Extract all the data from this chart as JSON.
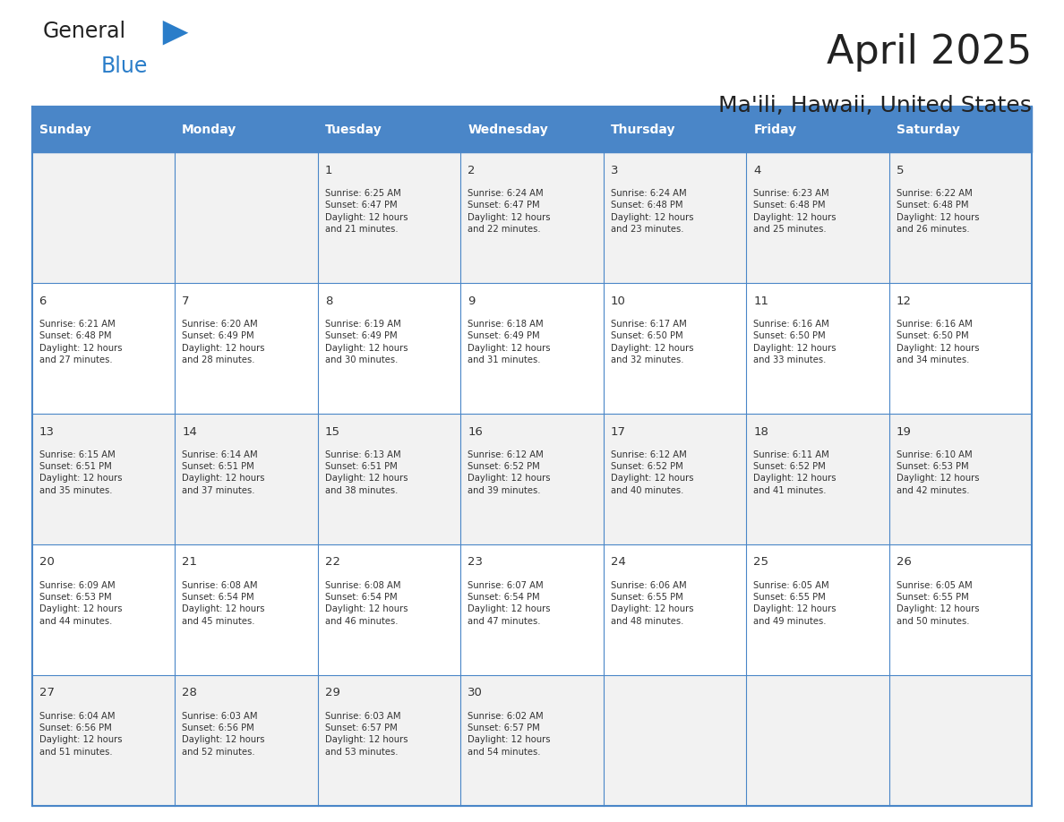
{
  "title": "April 2025",
  "subtitle": "Ma'ili, Hawaii, United States",
  "days_of_week": [
    "Sunday",
    "Monday",
    "Tuesday",
    "Wednesday",
    "Thursday",
    "Friday",
    "Saturday"
  ],
  "header_bg": "#4a86c8",
  "header_text": "#ffffff",
  "row_bg_odd": "#f2f2f2",
  "row_bg_even": "#ffffff",
  "border_color": "#4a86c8",
  "text_color": "#333333",
  "day_num_color": "#333333",
  "calendar_data": [
    [
      null,
      null,
      {
        "day": 1,
        "sunrise": "6:25 AM",
        "sunset": "6:47 PM",
        "daylight": "12 hours and 21 minutes."
      },
      {
        "day": 2,
        "sunrise": "6:24 AM",
        "sunset": "6:47 PM",
        "daylight": "12 hours and 22 minutes."
      },
      {
        "day": 3,
        "sunrise": "6:24 AM",
        "sunset": "6:48 PM",
        "daylight": "12 hours and 23 minutes."
      },
      {
        "day": 4,
        "sunrise": "6:23 AM",
        "sunset": "6:48 PM",
        "daylight": "12 hours and 25 minutes."
      },
      {
        "day": 5,
        "sunrise": "6:22 AM",
        "sunset": "6:48 PM",
        "daylight": "12 hours and 26 minutes."
      }
    ],
    [
      {
        "day": 6,
        "sunrise": "6:21 AM",
        "sunset": "6:48 PM",
        "daylight": "12 hours and 27 minutes."
      },
      {
        "day": 7,
        "sunrise": "6:20 AM",
        "sunset": "6:49 PM",
        "daylight": "12 hours and 28 minutes."
      },
      {
        "day": 8,
        "sunrise": "6:19 AM",
        "sunset": "6:49 PM",
        "daylight": "12 hours and 30 minutes."
      },
      {
        "day": 9,
        "sunrise": "6:18 AM",
        "sunset": "6:49 PM",
        "daylight": "12 hours and 31 minutes."
      },
      {
        "day": 10,
        "sunrise": "6:17 AM",
        "sunset": "6:50 PM",
        "daylight": "12 hours and 32 minutes."
      },
      {
        "day": 11,
        "sunrise": "6:16 AM",
        "sunset": "6:50 PM",
        "daylight": "12 hours and 33 minutes."
      },
      {
        "day": 12,
        "sunrise": "6:16 AM",
        "sunset": "6:50 PM",
        "daylight": "12 hours and 34 minutes."
      }
    ],
    [
      {
        "day": 13,
        "sunrise": "6:15 AM",
        "sunset": "6:51 PM",
        "daylight": "12 hours and 35 minutes."
      },
      {
        "day": 14,
        "sunrise": "6:14 AM",
        "sunset": "6:51 PM",
        "daylight": "12 hours and 37 minutes."
      },
      {
        "day": 15,
        "sunrise": "6:13 AM",
        "sunset": "6:51 PM",
        "daylight": "12 hours and 38 minutes."
      },
      {
        "day": 16,
        "sunrise": "6:12 AM",
        "sunset": "6:52 PM",
        "daylight": "12 hours and 39 minutes."
      },
      {
        "day": 17,
        "sunrise": "6:12 AM",
        "sunset": "6:52 PM",
        "daylight": "12 hours and 40 minutes."
      },
      {
        "day": 18,
        "sunrise": "6:11 AM",
        "sunset": "6:52 PM",
        "daylight": "12 hours and 41 minutes."
      },
      {
        "day": 19,
        "sunrise": "6:10 AM",
        "sunset": "6:53 PM",
        "daylight": "12 hours and 42 minutes."
      }
    ],
    [
      {
        "day": 20,
        "sunrise": "6:09 AM",
        "sunset": "6:53 PM",
        "daylight": "12 hours and 44 minutes."
      },
      {
        "day": 21,
        "sunrise": "6:08 AM",
        "sunset": "6:54 PM",
        "daylight": "12 hours and 45 minutes."
      },
      {
        "day": 22,
        "sunrise": "6:08 AM",
        "sunset": "6:54 PM",
        "daylight": "12 hours and 46 minutes."
      },
      {
        "day": 23,
        "sunrise": "6:07 AM",
        "sunset": "6:54 PM",
        "daylight": "12 hours and 47 minutes."
      },
      {
        "day": 24,
        "sunrise": "6:06 AM",
        "sunset": "6:55 PM",
        "daylight": "12 hours and 48 minutes."
      },
      {
        "day": 25,
        "sunrise": "6:05 AM",
        "sunset": "6:55 PM",
        "daylight": "12 hours and 49 minutes."
      },
      {
        "day": 26,
        "sunrise": "6:05 AM",
        "sunset": "6:55 PM",
        "daylight": "12 hours and 50 minutes."
      }
    ],
    [
      {
        "day": 27,
        "sunrise": "6:04 AM",
        "sunset": "6:56 PM",
        "daylight": "12 hours and 51 minutes."
      },
      {
        "day": 28,
        "sunrise": "6:03 AM",
        "sunset": "6:56 PM",
        "daylight": "12 hours and 52 minutes."
      },
      {
        "day": 29,
        "sunrise": "6:03 AM",
        "sunset": "6:57 PM",
        "daylight": "12 hours and 53 minutes."
      },
      {
        "day": 30,
        "sunrise": "6:02 AM",
        "sunset": "6:57 PM",
        "daylight": "12 hours and 54 minutes."
      },
      null,
      null,
      null
    ]
  ],
  "logo_general_color": "#222222",
  "logo_blue_color": "#2a7dc9",
  "logo_triangle_color": "#2a7dc9"
}
